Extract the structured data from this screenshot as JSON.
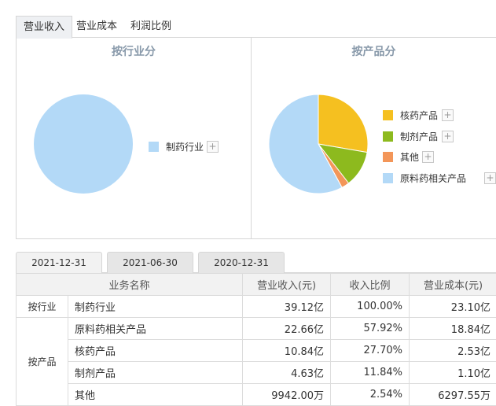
{
  "top_tabs": [
    {
      "label": "营业收入",
      "active": true
    },
    {
      "label": "营业成本",
      "active": false
    },
    {
      "label": "利润比例",
      "active": false
    }
  ],
  "left_panel": {
    "title": "按行业分",
    "legend": [
      {
        "label": "制药行业",
        "color": "#b3d9f7"
      }
    ]
  },
  "right_panel": {
    "title": "按产品分",
    "legend": [
      {
        "label": "核药产品",
        "color": "#f5c020"
      },
      {
        "label": "制剂产品",
        "color": "#8dba1e"
      },
      {
        "label": "其他",
        "color": "#f39659"
      },
      {
        "label": "原料药相关产品",
        "color": "#b3d9f7"
      }
    ]
  },
  "plus_symbol": "+",
  "chart_data": [
    {
      "type": "pie",
      "title": "按行业分",
      "categories": [
        "制药行业"
      ],
      "values": [
        100.0
      ],
      "colors": [
        "#b3d9f7"
      ]
    },
    {
      "type": "pie",
      "title": "按产品分",
      "categories": [
        "核药产品",
        "制剂产品",
        "其他",
        "原料药相关产品"
      ],
      "values": [
        27.7,
        11.84,
        2.54,
        57.92
      ],
      "colors": [
        "#f5c020",
        "#8dba1e",
        "#f39659",
        "#b3d9f7"
      ]
    }
  ],
  "date_tabs": [
    {
      "label": "2021-12-31",
      "active": true
    },
    {
      "label": "2021-06-30",
      "active": false
    },
    {
      "label": "2020-12-31",
      "active": false
    }
  ],
  "table": {
    "headers": [
      "业务名称",
      "营业收入(元)",
      "收入比例",
      "营业成本(元)"
    ],
    "groups": [
      {
        "label": "按行业",
        "rows": [
          {
            "name": "制药行业",
            "revenue": "39.12亿",
            "ratio": "100.00%",
            "cost": "23.10亿"
          }
        ]
      },
      {
        "label": "按产品",
        "rows": [
          {
            "name": "原料药相关产品",
            "revenue": "22.66亿",
            "ratio": "57.92%",
            "cost": "18.84亿"
          },
          {
            "name": "核药产品",
            "revenue": "10.84亿",
            "ratio": "27.70%",
            "cost": "2.53亿"
          },
          {
            "name": "制剂产品",
            "revenue": "4.63亿",
            "ratio": "11.84%",
            "cost": "1.10亿"
          },
          {
            "name": "其他",
            "revenue": "9942.00万",
            "ratio": "2.54%",
            "cost": "6297.55万"
          }
        ]
      }
    ]
  }
}
